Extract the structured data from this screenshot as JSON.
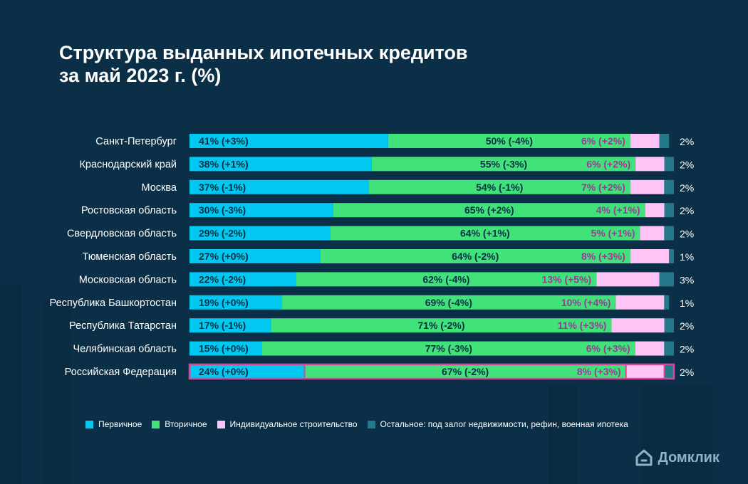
{
  "title_line1": "Структура выданных ипотечных кредитов",
  "title_line2": "за май 2023 г. (%)",
  "colors": {
    "primary": "#00c8f0",
    "secondary": "#41e27a",
    "individual": "#ffc3f6",
    "other": "#25788a",
    "label_dark": "#0b2f47",
    "label_pink": "#9a3a98",
    "highlight_border": "#d9459a"
  },
  "legend": [
    {
      "label": "Первичное",
      "color": "#00c8f0"
    },
    {
      "label": "Вторичное",
      "color": "#41e27a"
    },
    {
      "label": "Индивидуальное строительство",
      "color": "#ffc3f6"
    },
    {
      "label": "Остальное: под залог недвижимости, рефин, военная ипотека",
      "color": "#25788a"
    }
  ],
  "brand": {
    "name": "Домклик",
    "icon": "house-icon"
  },
  "chart_data": {
    "type": "bar",
    "stacked": true,
    "orientation": "horizontal",
    "categories": [
      "Санкт-Петербург",
      "Краснодарский край",
      "Москва",
      "Ростовская область",
      "Свердловская область",
      "Тюменская область",
      "Московская область",
      "Республика Башкортостан",
      "Республика Татарстан",
      "Челябинская область",
      "Российская Федерация"
    ],
    "series": [
      {
        "name": "Первичное",
        "values": [
          41,
          38,
          37,
          30,
          29,
          27,
          22,
          19,
          17,
          15,
          24
        ],
        "labels": [
          "41% (+3%)",
          "38% (+1%)",
          "37% (-1%)",
          "30% (-3%)",
          "29% (-2%)",
          "27% (+0%)",
          "22% (-2%)",
          "19% (+0%)",
          "17% (-1%)",
          "15% (+0%)",
          "24% (+0%)"
        ]
      },
      {
        "name": "Вторичное",
        "values": [
          50,
          55,
          54,
          65,
          64,
          64,
          62,
          69,
          71,
          77,
          67
        ],
        "labels": [
          "50% (-4%)",
          "55% (-3%)",
          "54% (-1%)",
          "65% (+2%)",
          "64% (+1%)",
          "64% (-2%)",
          "62% (-4%)",
          "69% (-4%)",
          "71% (-2%)",
          "77% (-3%)",
          "67% (-2%)"
        ]
      },
      {
        "name": "Индивидуальное строительство",
        "values": [
          6,
          6,
          7,
          4,
          5,
          8,
          13,
          10,
          11,
          6,
          8
        ],
        "labels": [
          "6% (+2%)",
          "6% (+2%)",
          "7% (+2%)",
          "4% (+1%)",
          "5% (+1%)",
          "8% (+3%)",
          "13% (+5%)",
          "10% (+4%)",
          "11% (+3%)",
          "6% (+3%)",
          "8% (+3%)"
        ]
      },
      {
        "name": "Остальное: под залог недвижимости, рефин, военная ипотека",
        "values": [
          2,
          2,
          2,
          2,
          2,
          1,
          3,
          1,
          2,
          2,
          2
        ],
        "labels": [
          "2%",
          "2%",
          "2%",
          "2%",
          "2%",
          "1%",
          "3%",
          "1%",
          "2%",
          "2%",
          "2%"
        ]
      }
    ],
    "highlight_category": "Российская Федерация",
    "xlim": [
      0,
      100
    ],
    "grid": false,
    "legend_position": "bottom"
  }
}
